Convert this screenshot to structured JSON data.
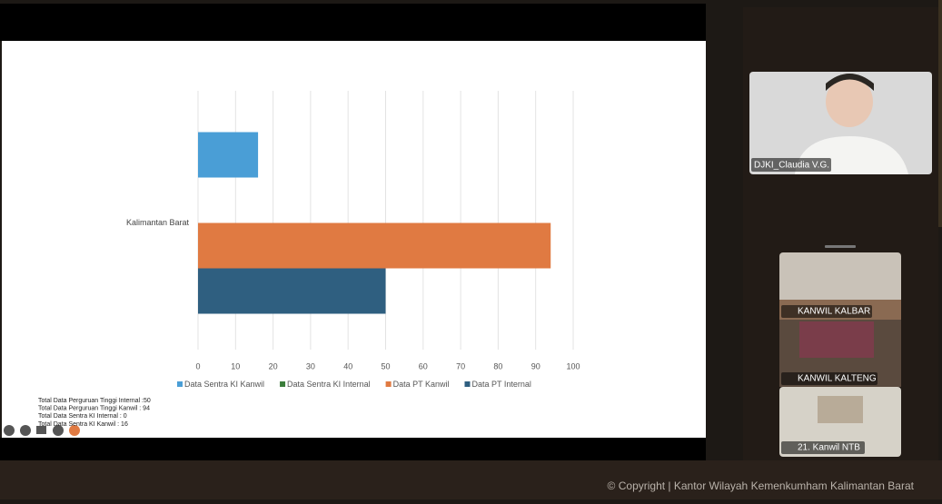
{
  "chart_data": {
    "type": "bar",
    "orientation": "horizontal",
    "categories": [
      "Kalimantan Barat"
    ],
    "series": [
      {
        "name": "Data Sentra KI Kanwil",
        "color": "#4a9ed6",
        "values": [
          16
        ]
      },
      {
        "name": "Data Sentra KI Internal",
        "color": "#3b7d3b",
        "values": [
          0
        ]
      },
      {
        "name": "Data PT Kanwil",
        "color": "#e07a42",
        "values": [
          94
        ]
      },
      {
        "name": "Data PT Internal",
        "color": "#2f5f80",
        "values": [
          50
        ]
      }
    ],
    "xlim": [
      0,
      100
    ],
    "xticks": [
      0,
      10,
      20,
      30,
      40,
      50,
      60,
      70,
      80,
      90,
      100
    ],
    "grid": true,
    "legend": "bottom"
  },
  "notes": [
    "Total Data Perguruan Tinggi Internal :50",
    "Total Data Perguruan Tinggi Kanwil : 94",
    "Total Data Sentra KI Internal : 0",
    "Total Data Sentra KI Kanwil : 16"
  ],
  "participants": [
    "DJKI_Claudia V.G.",
    "KANWIL KALBAR",
    "KANWIL KALTENG",
    "21. Kanwil NTB"
  ],
  "footer": "© Copyright | Kantor Wilayah Kemenkumham Kalimantan Barat"
}
